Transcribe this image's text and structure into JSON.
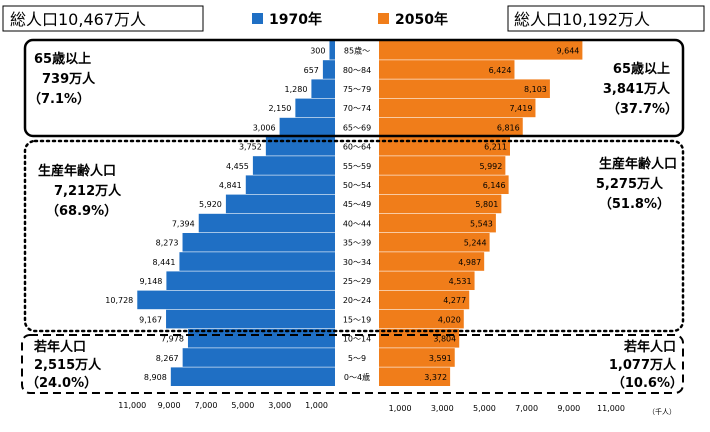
{
  "header": {
    "left_total": "総人口10,467万人",
    "right_total": "総人口10,192万人",
    "legend": [
      {
        "label": "1970年",
        "color": "#1f6fc4"
      },
      {
        "label": "2050年",
        "color": "#f07d1a"
      }
    ]
  },
  "groups": {
    "left": [
      {
        "title": "65歳以上",
        "count": "739万人",
        "pct": "（7.1%）"
      },
      {
        "title": "生産年齢人口",
        "count": "7,212万人",
        "pct": "（68.9%）"
      },
      {
        "title": "若年人口",
        "count": "2,515万人",
        "pct": "（24.0%）"
      }
    ],
    "right": [
      {
        "title": "65歳以上",
        "count": "3,841万人",
        "pct": "（37.7%）"
      },
      {
        "title": "生産年齢人口",
        "count": "5,275万人",
        "pct": "（51.8%）"
      },
      {
        "title": "若年人口",
        "count": "1,077万人",
        "pct": "（10.6%）"
      }
    ]
  },
  "chart_data": {
    "type": "bar",
    "orientation": "horizontal-pyramid",
    "categories": [
      "85歳～",
      "80～84",
      "75～79",
      "70～74",
      "65～69",
      "60～64",
      "55～59",
      "50～54",
      "45～49",
      "40～44",
      "35～39",
      "30～34",
      "25～29",
      "20～24",
      "15～19",
      "10～14",
      "5～9",
      "0～4歳"
    ],
    "series": [
      {
        "name": "1970年",
        "color": "#1f6fc4",
        "side": "left",
        "values": [
          300,
          657,
          1280,
          2150,
          3006,
          3752,
          4455,
          4841,
          5920,
          7394,
          8273,
          8441,
          9148,
          10728,
          9167,
          7978,
          8267,
          8908
        ],
        "labels": [
          "300",
          "657",
          "1,280",
          "2,150",
          "3,006",
          "3,752",
          "4,455",
          "4,841",
          "5,920",
          "7,394",
          "8,273",
          "8,441",
          "9,148",
          "10,728",
          "9,167",
          "7,978",
          "8,267",
          "8,908"
        ]
      },
      {
        "name": "2050年",
        "color": "#f07d1a",
        "side": "right",
        "values": [
          9644,
          6424,
          8103,
          7419,
          6816,
          6211,
          5992,
          6146,
          5801,
          5543,
          5244,
          4987,
          4531,
          4277,
          4020,
          3804,
          3591,
          3372
        ],
        "labels": [
          "9,644",
          "6,424",
          "8,103",
          "7,419",
          "6,816",
          "6,211",
          "5,992",
          "6,146",
          "5,801",
          "5,543",
          "5,244",
          "4,987",
          "4,531",
          "4,277",
          "4,020",
          "3,804",
          "3,591",
          "3,372"
        ]
      }
    ],
    "x_ticks": [
      "1,000",
      "3,000",
      "5,000",
      "7,000",
      "9,000",
      "11,000"
    ],
    "tick_values": [
      1000,
      3000,
      5000,
      7000,
      9000,
      11000
    ],
    "unit": "（千人）",
    "xlim": [
      0,
      11000
    ]
  }
}
